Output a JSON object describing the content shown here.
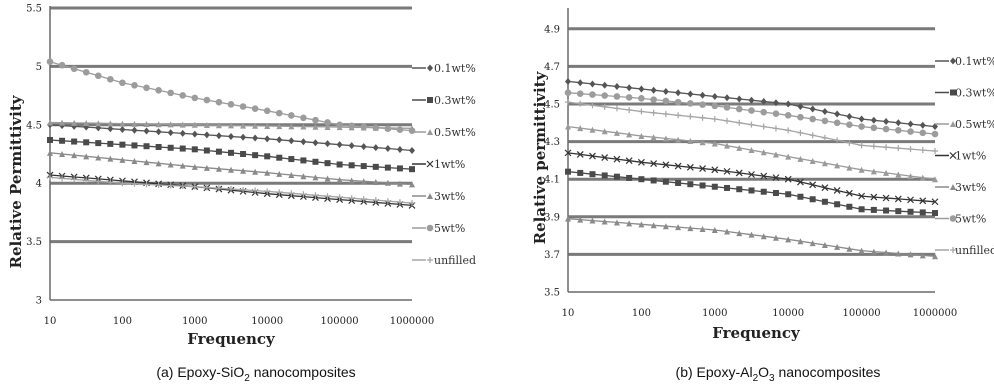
{
  "chart_data": [
    {
      "type": "line",
      "x": [
        10,
        100,
        1000,
        10000,
        100000,
        1000000
      ],
      "xscale": "log",
      "xtick_labels": [
        "10",
        "100",
        "1000",
        "10000",
        "100000",
        "1000000"
      ],
      "ylim": [
        3,
        5.5
      ],
      "yticks": [
        3,
        3.5,
        4,
        4.5,
        5,
        5.5
      ],
      "ytick_labels": [
        "3",
        "3.5",
        "4",
        "4.5",
        "5",
        "5.5"
      ],
      "xlabel": "Frequency",
      "ylabel": "Relative Permittivity",
      "legend_placement": "right",
      "caption_prefix": "(a)  Epoxy-SiO",
      "caption_sub": "2",
      "caption_suffix": " nanocomposites",
      "series": [
        {
          "name": "0.1wt%",
          "marker": "diamond",
          "color": "#555555",
          "values": [
            4.5,
            4.46,
            4.42,
            4.38,
            4.33,
            4.28
          ]
        },
        {
          "name": "0.3wt%",
          "marker": "square",
          "color": "#4a4a4a",
          "values": [
            4.37,
            4.33,
            4.29,
            4.23,
            4.16,
            4.12
          ]
        },
        {
          "name": "0.5wt%",
          "marker": "triangle",
          "color": "#9a9a9a",
          "values": [
            4.52,
            4.51,
            4.5,
            4.49,
            4.48,
            4.47
          ]
        },
        {
          "name": "1wt%",
          "marker": "cross",
          "color": "#333333",
          "values": [
            4.07,
            4.02,
            3.97,
            3.91,
            3.86,
            3.81
          ]
        },
        {
          "name": "3wt%",
          "marker": "triangle",
          "color": "#8a8a8a",
          "values": [
            4.26,
            4.2,
            4.14,
            4.09,
            4.03,
            3.99
          ]
        },
        {
          "name": "5wt%",
          "marker": "circle",
          "color": "#9c9c9c",
          "values": [
            5.04,
            4.86,
            4.73,
            4.62,
            4.5,
            4.45
          ]
        },
        {
          "name": "unfilled",
          "marker": "plus",
          "color": "#a5a5a5",
          "values": [
            4.05,
            4.0,
            3.97,
            3.93,
            3.88,
            3.83
          ]
        }
      ]
    },
    {
      "type": "line",
      "x": [
        10,
        100,
        1000,
        10000,
        100000,
        1000000
      ],
      "xscale": "log",
      "xtick_labels": [
        "10",
        "100",
        "1000",
        "10000",
        "100000",
        "1000000"
      ],
      "ylim": [
        3.5,
        5.0
      ],
      "yticks": [
        3.5,
        3.7,
        3.9,
        4.1,
        4.3,
        4.5,
        4.7,
        4.9
      ],
      "ytick_labels": [
        "3.5",
        "3.7",
        "3.9",
        "4.1",
        "4.3",
        "4.5",
        "4.7",
        "4.9"
      ],
      "xlabel": "Frequency",
      "ylabel": "Relative permittivity",
      "legend_placement": "right",
      "caption_prefix": "(b)  Epoxy-Al",
      "caption_sub1": "2",
      "caption_mid": "O",
      "caption_sub2": "3",
      "caption_suffix": " nanocomposites",
      "series": [
        {
          "name": "0.1wt%",
          "marker": "diamond",
          "color": "#555555",
          "values": [
            4.62,
            4.58,
            4.54,
            4.5,
            4.42,
            4.38
          ]
        },
        {
          "name": "0.3wt%",
          "marker": "square",
          "color": "#4a4a4a",
          "values": [
            4.14,
            4.1,
            4.06,
            4.02,
            3.94,
            3.92
          ]
        },
        {
          "name": "0.5wt%",
          "marker": "triangle",
          "color": "#9a9a9a",
          "values": [
            4.38,
            4.33,
            4.29,
            4.22,
            4.15,
            4.1
          ]
        },
        {
          "name": "1wt%",
          "marker": "cross",
          "color": "#333333",
          "values": [
            4.24,
            4.19,
            4.15,
            4.1,
            4.01,
            3.98
          ]
        },
        {
          "name": "3wt%",
          "marker": "triangle",
          "color": "#8a8a8a",
          "values": [
            3.89,
            3.86,
            3.83,
            3.78,
            3.72,
            3.69
          ]
        },
        {
          "name": "5wt%",
          "marker": "circle",
          "color": "#9c9c9c",
          "values": [
            4.56,
            4.53,
            4.49,
            4.44,
            4.38,
            4.34
          ]
        },
        {
          "name": "unfilled",
          "marker": "plus",
          "color": "#a5a5a5",
          "values": [
            4.51,
            4.46,
            4.42,
            4.36,
            4.28,
            4.25
          ]
        }
      ]
    }
  ]
}
